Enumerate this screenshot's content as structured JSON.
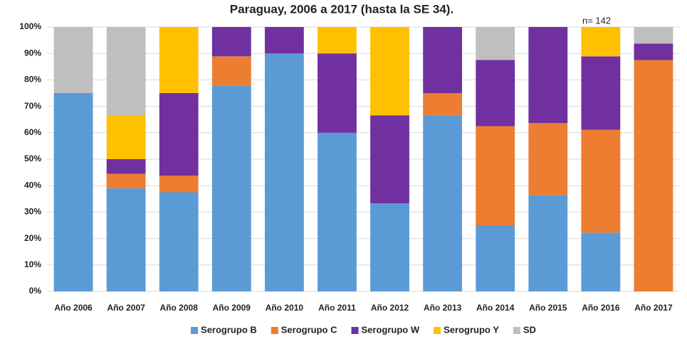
{
  "chart_data": {
    "type": "stacked_bar",
    "title": "Paraguay, 2006 a 2017 (hasta la SE 34).",
    "annotation": "n= 142",
    "categories": [
      "Año 2006",
      "Año 2007",
      "Año 2008",
      "Año 2009",
      "Año 2010",
      "Año 2011",
      "Año 2012",
      "Año 2013",
      "Año 2014",
      "Año 2015",
      "Año 2016",
      "Año 2017"
    ],
    "series": [
      {
        "name": "Serogrupo B",
        "color": "#5b9bd5",
        "values": [
          75,
          39,
          37.5,
          77.8,
          90,
          60,
          33.3,
          66.7,
          25,
          36.4,
          22.2,
          0
        ]
      },
      {
        "name": "Serogrupo C",
        "color": "#ed7d31",
        "values": [
          0,
          5.5,
          6.25,
          11.1,
          0,
          0,
          0,
          8.3,
          37.5,
          27.3,
          38.9,
          87.5
        ]
      },
      {
        "name": "Serogrupo W",
        "color": "#7030a0",
        "values": [
          0,
          5.5,
          31.25,
          11.1,
          10,
          30,
          33.3,
          25,
          25,
          36.3,
          27.8,
          6.25
        ]
      },
      {
        "name": "Serogrupo Y",
        "color": "#ffc000",
        "values": [
          0,
          16.7,
          25,
          0,
          0,
          10,
          33.4,
          0,
          0,
          0,
          11.1,
          0
        ]
      },
      {
        "name": "SD",
        "color": "#bfbfbf",
        "values": [
          25,
          33.3,
          0,
          0,
          0,
          0,
          0,
          0,
          12.5,
          0,
          0,
          6.25
        ]
      }
    ],
    "ylim": [
      0,
      100
    ],
    "yticks": [
      {
        "value": 0,
        "label": "0%"
      },
      {
        "value": 10,
        "label": "10%"
      },
      {
        "value": 20,
        "label": "20%"
      },
      {
        "value": 30,
        "label": "30%"
      },
      {
        "value": 40,
        "label": "40%"
      },
      {
        "value": 50,
        "label": "50%"
      },
      {
        "value": 60,
        "label": "60%"
      },
      {
        "value": 70,
        "label": "70%"
      },
      {
        "value": 80,
        "label": "80%"
      },
      {
        "value": 90,
        "label": "90%"
      },
      {
        "value": 100,
        "label": "100%"
      }
    ],
    "grid": true,
    "legend": "bottom"
  }
}
